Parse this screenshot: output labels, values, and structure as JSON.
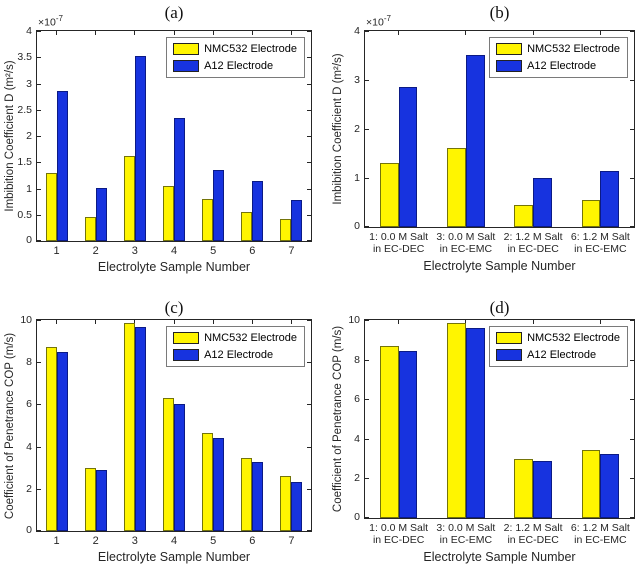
{
  "chart_data": [
    {
      "type": "bar",
      "title": "(a)",
      "xlabel": "Electrolyte Sample Number",
      "ylabel": "Imbibition Coefficient D (m²/s)",
      "y_scale": {
        "prefix": "×10",
        "exponent": "-7"
      },
      "ylim": [
        0,
        4
      ],
      "yticks": [
        "0",
        "0.5",
        "1",
        "1.5",
        "2",
        "2.5",
        "3",
        "3.5",
        "4"
      ],
      "grid": false,
      "legend_position": "top-right",
      "categories": [
        "1",
        "2",
        "3",
        "4",
        "5",
        "6",
        "7"
      ],
      "series": [
        {
          "name": "NMC532 Electrode",
          "color": "#fff500",
          "edge_color": "#74740a",
          "values": [
            1.3,
            0.45,
            1.62,
            1.05,
            0.8,
            0.55,
            0.42
          ]
        },
        {
          "name": "A12 Electrode",
          "color": "#1733df",
          "edge_color": "#0b1a85",
          "values": [
            2.85,
            1.0,
            3.52,
            2.35,
            1.35,
            1.15,
            0.78
          ]
        }
      ]
    },
    {
      "type": "bar",
      "title": "(b)",
      "xlabel": "Electrolyte Sample Number",
      "ylabel": "Imbibition Coefficient D (m²/s)",
      "y_scale": {
        "prefix": "×10",
        "exponent": "-7"
      },
      "ylim": [
        0,
        4
      ],
      "yticks": [
        "0",
        "1",
        "2",
        "3",
        "4"
      ],
      "grid": false,
      "legend_position": "top-right",
      "categories": [
        [
          "1: 0.0 M Salt",
          "in EC-DEC"
        ],
        [
          "3: 0.0 M Salt",
          "in EC-EMC"
        ],
        [
          "2: 1.2 M Salt",
          "in EC-DEC"
        ],
        [
          "6: 1.2 M Salt",
          "in EC-EMC"
        ]
      ],
      "series": [
        {
          "name": "NMC532 Electrode",
          "color": "#fff500",
          "edge_color": "#74740a",
          "values": [
            1.3,
            1.62,
            0.45,
            0.55
          ]
        },
        {
          "name": "A12 Electrode",
          "color": "#1733df",
          "edge_color": "#0b1a85",
          "values": [
            2.85,
            3.52,
            1.0,
            1.15
          ]
        }
      ]
    },
    {
      "type": "bar",
      "title": "(c)",
      "xlabel": "Electrolyte Sample Number",
      "ylabel": "Coefficient of Penetrance COP (m/s)",
      "y_scale": null,
      "ylim": [
        0,
        10
      ],
      "yticks": [
        "0",
        "2",
        "4",
        "6",
        "8",
        "10"
      ],
      "grid": false,
      "legend_position": "top-right",
      "categories": [
        "1",
        "2",
        "3",
        "4",
        "5",
        "6",
        "7"
      ],
      "series": [
        {
          "name": "NMC532 Electrode",
          "color": "#fff500",
          "edge_color": "#74740a",
          "values": [
            8.7,
            3.0,
            9.85,
            6.3,
            4.65,
            3.45,
            2.6
          ]
        },
        {
          "name": "A12 Electrode",
          "color": "#1733df",
          "edge_color": "#0b1a85",
          "values": [
            8.5,
            2.9,
            9.65,
            6.0,
            4.4,
            3.25,
            2.3
          ]
        }
      ]
    },
    {
      "type": "bar",
      "title": "(d)",
      "xlabel": "Electrolyte Sample Number",
      "ylabel": "Coefficient of Penetrance COP (m/s)",
      "y_scale": null,
      "ylim": [
        0,
        10
      ],
      "yticks": [
        "0",
        "2",
        "4",
        "6",
        "8",
        "10"
      ],
      "grid": false,
      "legend_position": "top-right",
      "categories": [
        [
          "1: 0.0 M Salt",
          "in EC-DEC"
        ],
        [
          "3: 0.0 M Salt",
          "in EC-EMC"
        ],
        [
          "2: 1.2 M Salt",
          "in EC-DEC"
        ],
        [
          "6: 1.2 M Salt",
          "in EC-EMC"
        ]
      ],
      "series": [
        {
          "name": "NMC532 Electrode",
          "color": "#fff500",
          "edge_color": "#74740a",
          "values": [
            8.7,
            9.85,
            3.0,
            3.45
          ]
        },
        {
          "name": "A12 Electrode",
          "color": "#1733df",
          "edge_color": "#0b1a85",
          "values": [
            8.45,
            9.6,
            2.9,
            3.25
          ]
        }
      ]
    }
  ]
}
